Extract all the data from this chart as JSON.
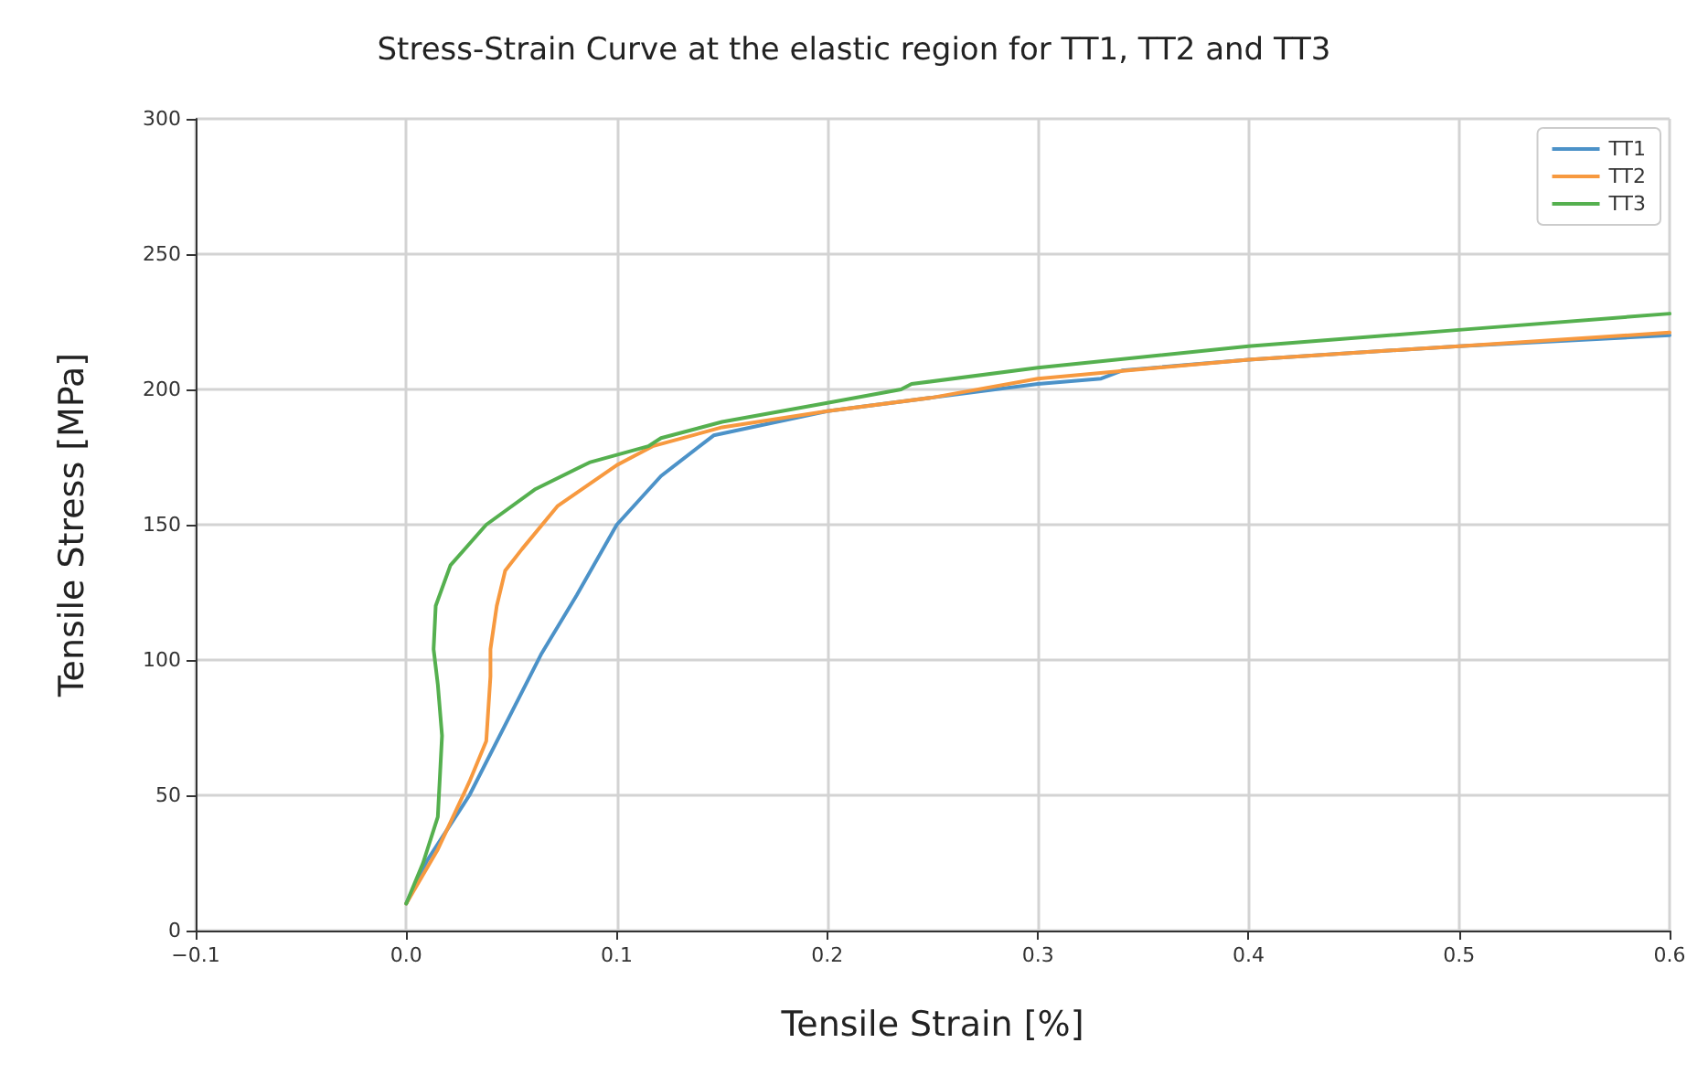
{
  "chart_data": {
    "type": "line",
    "title": "Stress-Strain Curve at the elastic region for TT1, TT2 and TT3",
    "xlabel": "Tensile Strain [%]",
    "ylabel": "Tensile Stress [MPa]",
    "xlim": [
      -0.1,
      0.6
    ],
    "xticks": [
      {
        "value": -0.1,
        "label": "−0.1"
      },
      {
        "value": 0,
        "label": "0.0"
      },
      0.1,
      0.2,
      0.3,
      0.4,
      0.5,
      0.6
    ],
    "ylim": [
      0,
      300
    ],
    "yticks": [
      0,
      50,
      100,
      150,
      200,
      250,
      300
    ],
    "grid": true,
    "legend": "top right",
    "line_style": "solid",
    "marker": "none",
    "series": [
      {
        "name": "TT1",
        "color": "#4c92c8",
        "x": [
          0,
          0.01,
          0.03,
          0.064,
          0.081,
          0.1,
          0.121,
          0.146,
          0.2,
          0.25,
          0.3,
          0.33,
          0.34,
          0.4,
          0.5,
          0.6
        ],
        "values": [
          10,
          26,
          50,
          102,
          124,
          150,
          168,
          183,
          192,
          197,
          202,
          204,
          207,
          211,
          216,
          220
        ]
      },
      {
        "name": "TT2",
        "color": "#f7993f",
        "x": [
          0,
          0.015,
          0.03,
          0.038,
          0.04,
          0.04,
          0.043,
          0.047,
          0.055,
          0.072,
          0.1,
          0.117,
          0.15,
          0.2,
          0.25,
          0.3,
          0.4,
          0.5,
          0.6
        ],
        "values": [
          10,
          30,
          55,
          70,
          94,
          104,
          120,
          133,
          141,
          157,
          172,
          179,
          186,
          192,
          197,
          204,
          211,
          216,
          221
        ]
      },
      {
        "name": "TT3",
        "color": "#55b04f",
        "x": [
          0,
          0.008,
          0.015,
          0.017,
          0.015,
          0.013,
          0.014,
          0.021,
          0.038,
          0.061,
          0.087,
          0.115,
          0.121,
          0.15,
          0.2,
          0.235,
          0.24,
          0.3,
          0.4,
          0.5,
          0.6
        ],
        "values": [
          10,
          25,
          42,
          72,
          91,
          104,
          120,
          135,
          150,
          163,
          173,
          179,
          182,
          188,
          195,
          200,
          202,
          208,
          216,
          222,
          228
        ]
      }
    ]
  }
}
